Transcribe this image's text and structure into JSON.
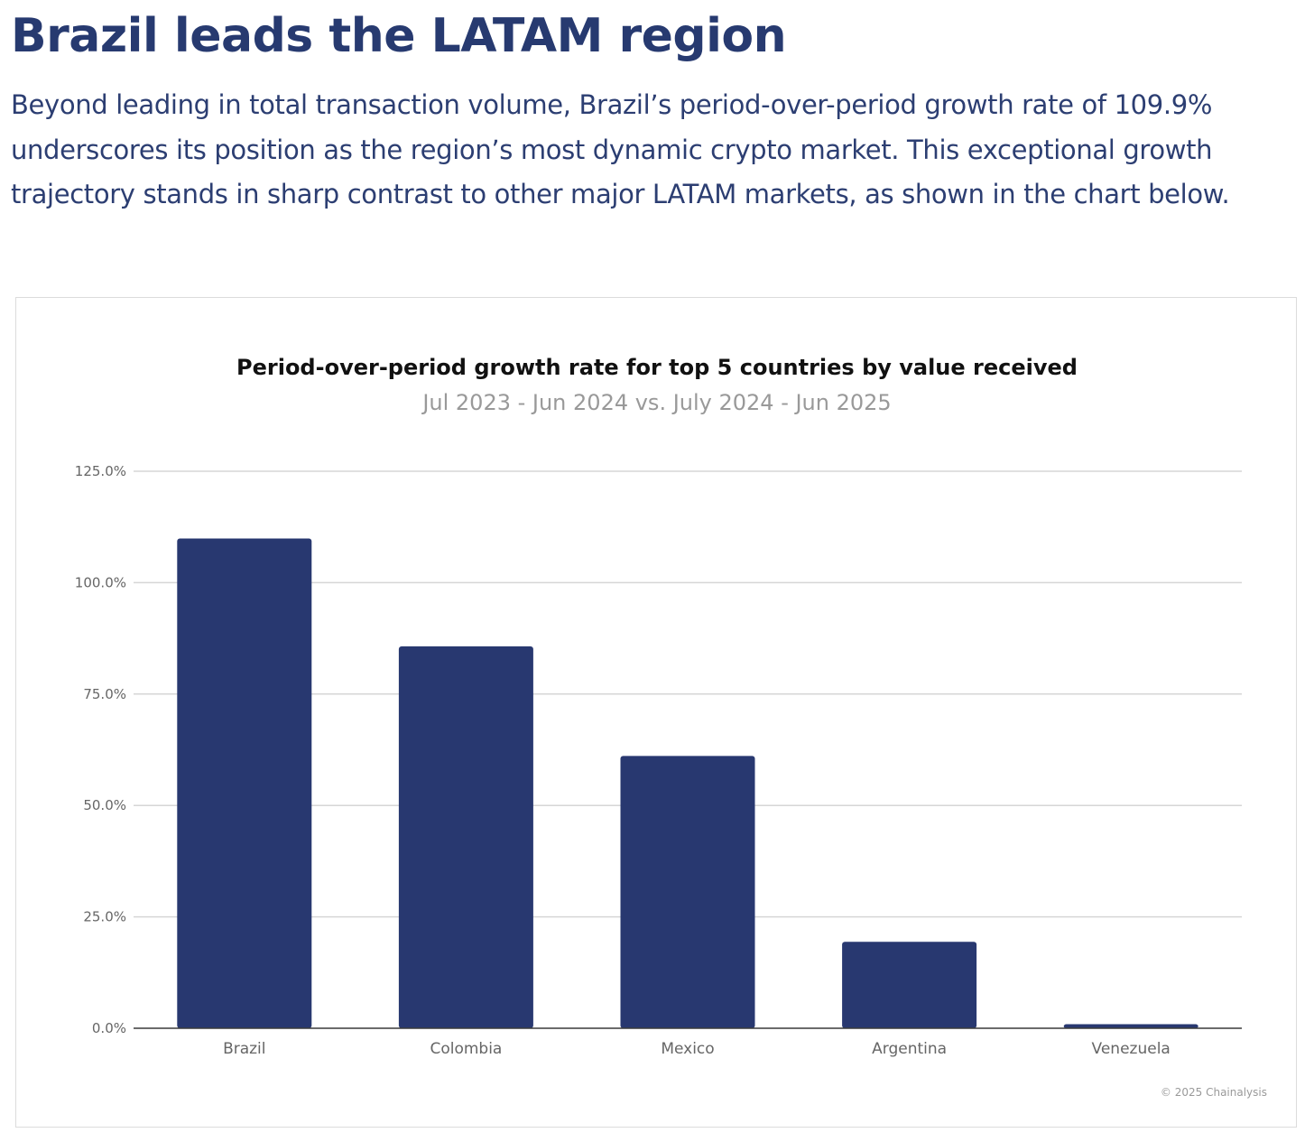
{
  "article": {
    "headline": "Brazil leads the LATAM region",
    "intro": "Beyond leading in total transaction volume, Brazil’s period-over-period growth rate of 109.9% underscores its position as the region’s most dynamic crypto market. This exceptional growth trajectory stands in sharp contrast to other major LATAM markets, as shown in the chart below."
  },
  "colors": {
    "headline": "#273a70",
    "bar": "#283870",
    "grid": "#d6d6d6",
    "axis": "#3a3a3a",
    "tick_text": "#666666",
    "subtitle": "#999999"
  },
  "chart_data": {
    "type": "bar",
    "title": "Period-over-period growth rate for top 5 countries by value received",
    "subtitle": "Jul 2023 - Jun 2024 vs. July 2024 - Jun 2025",
    "categories": [
      "Brazil",
      "Colombia",
      "Mexico",
      "Argentina",
      "Venezuela"
    ],
    "values": [
      109.9,
      85.7,
      61.1,
      19.4,
      0.9
    ],
    "value_unit": "%",
    "ylim": [
      0,
      125
    ],
    "yticks": [
      0,
      25,
      50,
      75,
      100,
      125
    ],
    "ytick_labels": [
      "0.0%",
      "25.0%",
      "50.0%",
      "75.0%",
      "100.0%",
      "125.0%"
    ],
    "xlabel": "",
    "ylabel": "",
    "grid": true,
    "legend": "none",
    "source": "© 2025 Chainalysis"
  }
}
